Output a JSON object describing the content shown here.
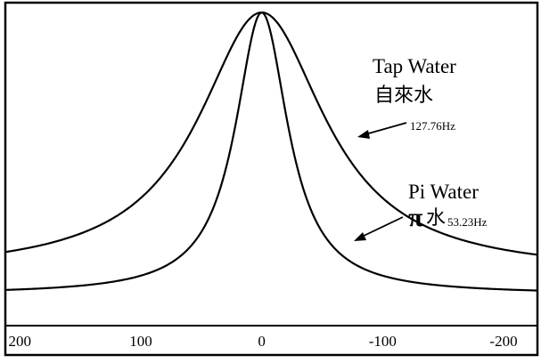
{
  "chart_data": {
    "type": "line",
    "title": "",
    "xlabel": "",
    "ylabel": "",
    "x_ticks": [
      200,
      100,
      0,
      -100,
      -200
    ],
    "x_tick_labels": [
      "200",
      "100",
      "0",
      "-100",
      "-200"
    ],
    "xlim": [
      212,
      -228
    ],
    "ylim": [
      0,
      1
    ],
    "grid": false,
    "legend": "none",
    "series": [
      {
        "name": "Tap Water",
        "shape": "lorentzian",
        "center": 0,
        "fwhm_hz": 127.76,
        "baseline": 0.11,
        "peak": 1.0
      },
      {
        "name": "Pi Water",
        "shape": "lorentzian",
        "center": 0,
        "fwhm_hz": 53.23,
        "baseline": 0.04,
        "peak": 1.0
      }
    ],
    "annotations": [
      {
        "series": "Tap Water",
        "title": "Tap Water",
        "chinese": "自來水",
        "frequency": "127.76Hz"
      },
      {
        "series": "Pi Water",
        "title": "Pi Water",
        "symbol": "π",
        "chinese": "水",
        "frequency": "53.23Hz"
      }
    ]
  }
}
